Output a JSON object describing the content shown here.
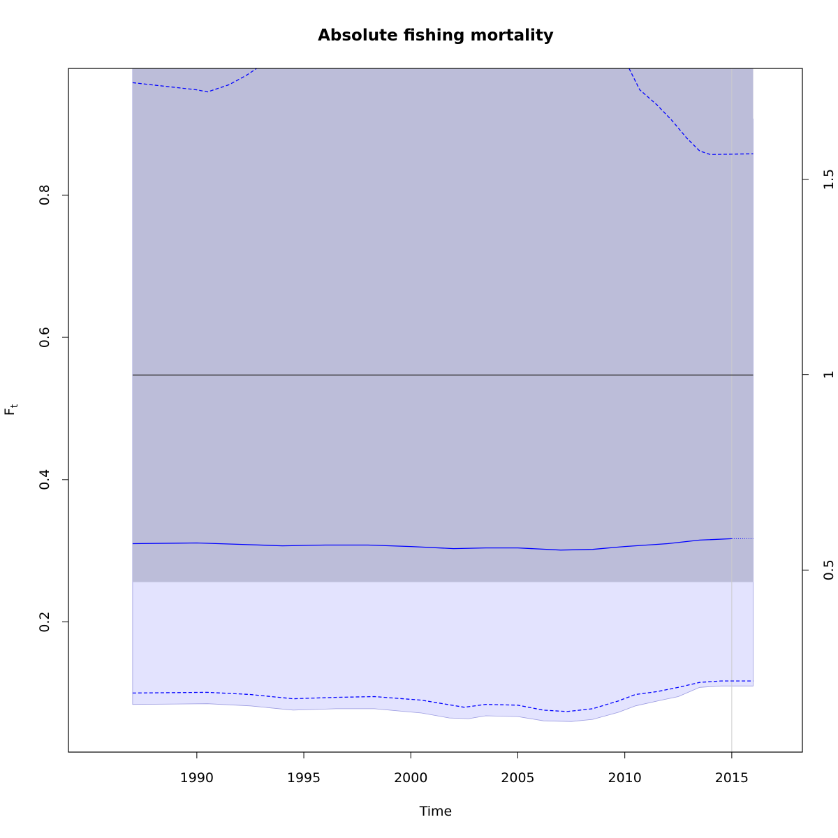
{
  "chart_data": {
    "type": "line",
    "title": "Absolute fishing mortality",
    "xlabel": "Time",
    "ylabel_main": "F",
    "ylabel_sub": "t",
    "xlim": [
      1984,
      2018.3
    ],
    "ylim": [
      0.017,
      0.978
    ],
    "y2lim": [
      0.034,
      1.784
    ],
    "x_ticks": [
      1990,
      1995,
      2000,
      2005,
      2010,
      2015
    ],
    "y_ticks": [
      0.2,
      0.4,
      0.6,
      0.8
    ],
    "y_tick_labels": [
      "0.2",
      "0.4",
      "0.6",
      "0.8"
    ],
    "y2_ticks": [
      0.5,
      1.0,
      1.5
    ],
    "y2_tick_labels": [
      "0.5",
      "1",
      "1.5"
    ],
    "grid": false,
    "last_observation_year": 2015,
    "reference_line": {
      "y": 0.547,
      "color": "#333333"
    },
    "reference_band": {
      "x_range": [
        1987,
        2016
      ],
      "y_range": [
        0.256,
        0.978
      ],
      "color": "#bcbdd9"
    },
    "series": [
      {
        "role": "estimate",
        "color": "#0000ff",
        "style": "solid",
        "points": [
          [
            1987,
            0.31
          ],
          [
            1990,
            0.311
          ],
          [
            1992,
            0.309
          ],
          [
            1994,
            0.307
          ],
          [
            1996,
            0.308
          ],
          [
            1998,
            0.308
          ],
          [
            2000,
            0.306
          ],
          [
            2002,
            0.303
          ],
          [
            2003.5,
            0.304
          ],
          [
            2005,
            0.304
          ],
          [
            2007,
            0.301
          ],
          [
            2008.5,
            0.302
          ],
          [
            2010,
            0.306
          ],
          [
            2012,
            0.31
          ],
          [
            2013.5,
            0.315
          ],
          [
            2015,
            0.317
          ]
        ]
      },
      {
        "role": "projection",
        "color": "#0000ff",
        "style": "dotted",
        "points": [
          [
            2015,
            0.317
          ],
          [
            2016,
            0.317
          ]
        ]
      },
      {
        "role": "upper-ci",
        "color": "#0000ff",
        "style": "dashed",
        "points": [
          [
            1987,
            0.958
          ],
          [
            1988.5,
            0.953
          ],
          [
            1990,
            0.948
          ],
          [
            1990.5,
            0.945
          ],
          [
            1991.5,
            0.955
          ],
          [
            1992.3,
            0.968
          ],
          [
            1992.8,
            0.978
          ]
        ]
      },
      {
        "role": "upper-ci-end",
        "color": "#0000ff",
        "style": "dashed",
        "points": [
          [
            2010.2,
            0.978
          ],
          [
            2010.7,
            0.948
          ],
          [
            2011.5,
            0.927
          ],
          [
            2012.2,
            0.905
          ],
          [
            2012.9,
            0.88
          ],
          [
            2013.5,
            0.862
          ],
          [
            2014,
            0.857
          ],
          [
            2016,
            0.858
          ]
        ]
      },
      {
        "role": "lower-ci",
        "color": "#0000ff",
        "style": "dashed",
        "points": [
          [
            1987,
            0.1
          ],
          [
            1990.5,
            0.101
          ],
          [
            1992.5,
            0.098
          ],
          [
            1994.5,
            0.092
          ],
          [
            1996.5,
            0.094
          ],
          [
            1998.3,
            0.095
          ],
          [
            2000.5,
            0.09
          ],
          [
            2002.5,
            0.08
          ],
          [
            2003.5,
            0.084
          ],
          [
            2005,
            0.083
          ],
          [
            2006.2,
            0.076
          ],
          [
            2007.3,
            0.074
          ],
          [
            2008.5,
            0.078
          ],
          [
            2009.7,
            0.089
          ],
          [
            2010.5,
            0.098
          ],
          [
            2011.5,
            0.102
          ],
          [
            2012.5,
            0.108
          ],
          [
            2013.5,
            0.115
          ],
          [
            2014.5,
            0.117
          ],
          [
            2016,
            0.117
          ]
        ]
      }
    ],
    "outer_band": {
      "color": "#e3e3fe",
      "lower": [
        [
          1987,
          0.084
        ],
        [
          1990.5,
          0.085
        ],
        [
          1992.5,
          0.082
        ],
        [
          1994.5,
          0.076
        ],
        [
          1996.5,
          0.078
        ],
        [
          1998.3,
          0.078
        ],
        [
          2000.5,
          0.072
        ],
        [
          2001.8,
          0.065
        ],
        [
          2002.7,
          0.064
        ],
        [
          2003.5,
          0.068
        ],
        [
          2005,
          0.067
        ],
        [
          2006.2,
          0.061
        ],
        [
          2007.5,
          0.06
        ],
        [
          2008.5,
          0.063
        ],
        [
          2009.7,
          0.073
        ],
        [
          2010.5,
          0.082
        ],
        [
          2011.7,
          0.09
        ],
        [
          2012.5,
          0.095
        ],
        [
          2013.5,
          0.108
        ],
        [
          2014.5,
          0.11
        ],
        [
          2016,
          0.11
        ]
      ],
      "upper_curve": [
        [
          2016,
          0.907
        ],
        [
          2015,
          0.907
        ],
        [
          2014.5,
          0.909
        ],
        [
          2014,
          0.915
        ],
        [
          2013.5,
          0.929
        ],
        [
          2013.2,
          0.948
        ],
        [
          2013,
          0.978
        ]
      ]
    },
    "upper_band": {
      "color": "#d3d3d3"
    }
  }
}
